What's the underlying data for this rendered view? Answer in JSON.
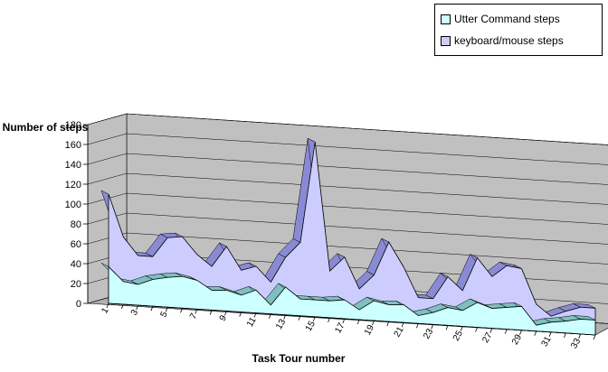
{
  "chart_data": {
    "type": "area",
    "subtype": "3d-area",
    "xlabel": "Task Tour number",
    "ylabel": "Number of steps",
    "ylim": [
      0,
      180
    ],
    "yticks": [
      0,
      20,
      40,
      60,
      80,
      100,
      120,
      140,
      160,
      180
    ],
    "x": [
      1,
      2,
      3,
      4,
      5,
      6,
      7,
      8,
      9,
      10,
      11,
      12,
      13,
      14,
      15,
      16,
      17,
      18,
      19,
      20,
      21,
      22,
      23,
      24,
      25,
      26,
      27,
      28,
      29,
      30,
      31,
      32,
      33,
      34
    ],
    "xtick_labels": [
      "1",
      "3",
      "5",
      "7",
      "9",
      "11",
      "13",
      "15",
      "17",
      "19",
      "21",
      "23",
      "25",
      "27",
      "29",
      "31",
      "33"
    ],
    "grid": true,
    "legend_position": "top-right",
    "series": [
      {
        "name": "keyboard/mouse steps",
        "color": "#ccccff",
        "values": [
          110,
          68,
          50,
          50,
          70,
          72,
          55,
          44,
          65,
          42,
          47,
          32,
          58,
          74,
          176,
          47,
          62,
          31,
          46,
          80,
          56,
          26,
          26,
          49,
          36,
          70,
          52,
          64,
          62,
          27,
          16,
          22,
          27,
          27
        ]
      },
      {
        "name": "Utter Command steps",
        "color": "#ccffff",
        "values": [
          37,
          23,
          21,
          27,
          30,
          32,
          29,
          20,
          21,
          17,
          23,
          9,
          28,
          17,
          17,
          17,
          19,
          10,
          20,
          17,
          18,
          8,
          12,
          18,
          16,
          25,
          20,
          22,
          24,
          6,
          10,
          12,
          15,
          15
        ]
      }
    ]
  },
  "legend": {
    "items": [
      {
        "label": "Utter Command steps",
        "color": "#ccffff"
      },
      {
        "label": "keyboard/mouse steps",
        "color": "#ccccff"
      }
    ]
  }
}
